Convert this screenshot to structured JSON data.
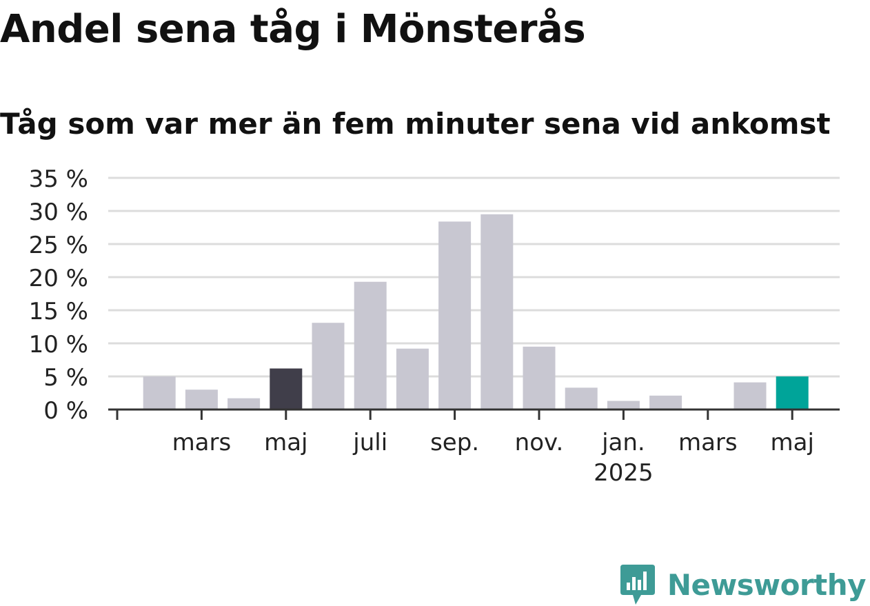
{
  "title": "Andel sena tåg i Mönsterås",
  "subtitle": "Tåg som var mer än fem minuter sena vid ankomst",
  "brand": "Newsworthy",
  "colors": {
    "bar_default": "#c8c7d1",
    "bar_highlight_dark": "#403e4a",
    "bar_latest": "#00a499",
    "grid": "#dcdcdc",
    "axis": "#333333",
    "brand": "#3e9b96"
  },
  "chart_data": {
    "type": "bar",
    "title": "Andel sena tåg i Mönsterås",
    "subtitle": "Tåg som var mer än fem minuter sena vid ankomst",
    "xlabel": "",
    "ylabel": "",
    "ylim": [
      0,
      35
    ],
    "yticks": [
      0,
      5,
      10,
      15,
      20,
      25,
      30,
      35
    ],
    "ytick_labels": [
      "0 %",
      "5 %",
      "10 %",
      "15 %",
      "20 %",
      "25 %",
      "30 %",
      "35 %"
    ],
    "grid": true,
    "categories": [
      "2024-01",
      "2024-02",
      "2024-03",
      "2024-04",
      "2024-05",
      "2024-06",
      "2024-07",
      "2024-08",
      "2024-09",
      "2024-10",
      "2024-11",
      "2024-12",
      "2025-01",
      "2025-02",
      "2025-03",
      "2025-04",
      "2025-05"
    ],
    "values": [
      null,
      5.0,
      3.0,
      1.7,
      6.2,
      13.1,
      19.3,
      9.2,
      28.4,
      29.5,
      9.5,
      3.3,
      1.3,
      2.1,
      0,
      4.1,
      5.0
    ],
    "highlight": {
      "2024-05": "dark",
      "2025-05": "latest"
    },
    "xtick_labels": [
      {
        "at": "2024-01",
        "label": ""
      },
      {
        "at": "2024-03",
        "label": "mars"
      },
      {
        "at": "2024-05",
        "label": "maj"
      },
      {
        "at": "2024-07",
        "label": "juli"
      },
      {
        "at": "2024-09",
        "label": "sep."
      },
      {
        "at": "2024-11",
        "label": "nov."
      },
      {
        "at": "2025-01",
        "label": "jan.",
        "sublabel": "2025"
      },
      {
        "at": "2025-03",
        "label": "mars"
      },
      {
        "at": "2025-05",
        "label": "maj"
      }
    ]
  }
}
